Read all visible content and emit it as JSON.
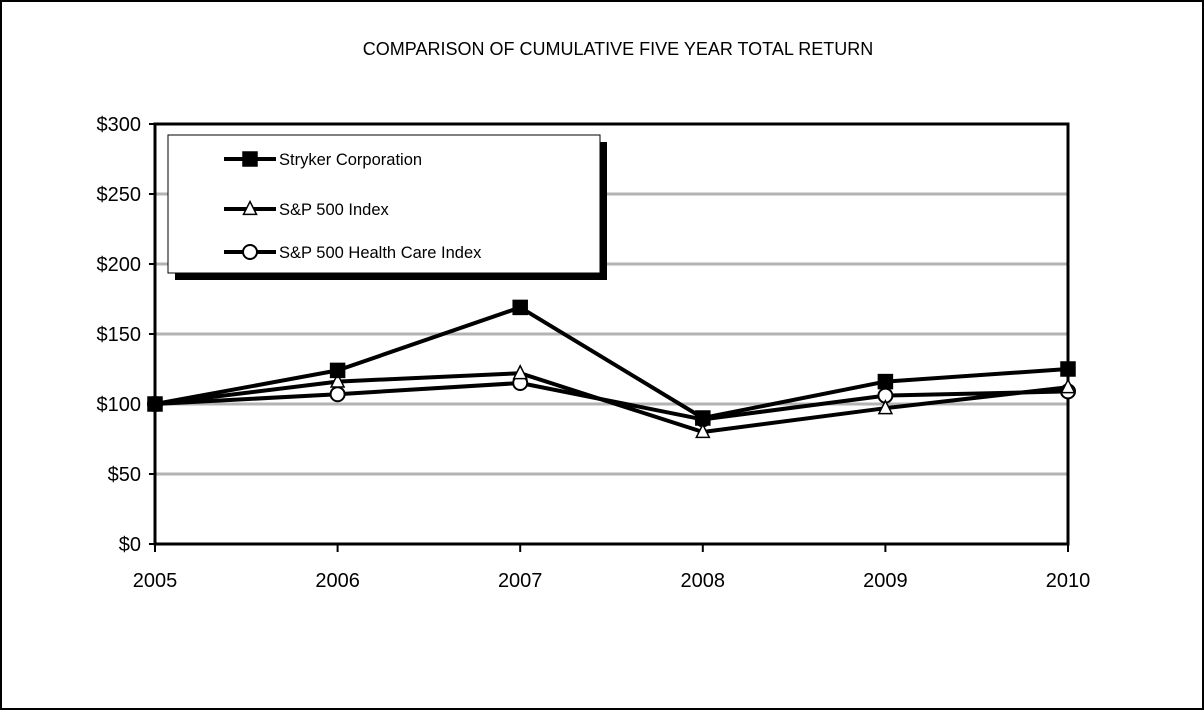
{
  "chart_data": {
    "type": "line",
    "title": "COMPARISON OF CUMULATIVE FIVE YEAR TOTAL RETURN",
    "xlabel": "",
    "ylabel": "",
    "categories": [
      "2005",
      "2006",
      "2007",
      "2008",
      "2009",
      "2010"
    ],
    "ylim": [
      0,
      300
    ],
    "yticks": [
      0,
      50,
      100,
      150,
      200,
      250,
      300
    ],
    "ytick_labels": [
      "$0",
      "$50",
      "$100",
      "$150",
      "$200",
      "$250",
      "$300"
    ],
    "grid": true,
    "legend_position": "top-left",
    "series": [
      {
        "name": "Stryker Corporation",
        "marker": "square-filled",
        "values": [
          100,
          124,
          169,
          90,
          116,
          125
        ]
      },
      {
        "name": "S&P 500 Index",
        "marker": "triangle-open",
        "values": [
          100,
          116,
          122,
          80,
          97,
          112
        ]
      },
      {
        "name": "S&P 500 Health Care Index",
        "marker": "circle-open",
        "values": [
          100,
          107,
          115,
          89,
          106,
          109
        ]
      }
    ],
    "colors": {
      "line": "#000000",
      "grid": "#b3b3b3",
      "background": "#ffffff",
      "legend_shadow": "#000000"
    }
  }
}
